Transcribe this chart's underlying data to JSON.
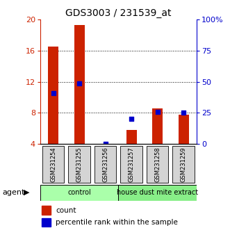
{
  "title": "GDS3003 / 231539_at",
  "samples": [
    "GSM231254",
    "GSM231255",
    "GSM231256",
    "GSM231257",
    "GSM231258",
    "GSM231259"
  ],
  "counts": [
    16.5,
    19.3,
    4.0,
    5.8,
    8.6,
    7.8
  ],
  "percentile_ranks": [
    10.5,
    11.8,
    4.0,
    7.2,
    8.1,
    8.0
  ],
  "groups": [
    {
      "label": "control",
      "indices": [
        0,
        1,
        2
      ],
      "color": "#aaffaa"
    },
    {
      "label": "house dust mite extract",
      "indices": [
        3,
        4,
        5
      ],
      "color": "#88ee88"
    }
  ],
  "ylim_left": [
    4,
    20
  ],
  "ylim_right": [
    0,
    100
  ],
  "yticks_left": [
    4,
    8,
    12,
    16,
    20
  ],
  "ytick_labels_left": [
    "4",
    "8",
    "12",
    "16",
    "20"
  ],
  "yticks_right": [
    0,
    25,
    50,
    75,
    100
  ],
  "ytick_labels_right": [
    "0",
    "25",
    "50",
    "75",
    "100%"
  ],
  "grid_lines": [
    8,
    12,
    16
  ],
  "left_axis_color": "#cc2200",
  "right_axis_color": "#0000cc",
  "bar_color": "#cc2200",
  "dot_color": "#0000cc",
  "legend_count_label": "count",
  "legend_percentile_label": "percentile rank within the sample",
  "agent_label": "agent",
  "bar_bottom": 4.0,
  "bar_width": 0.4
}
